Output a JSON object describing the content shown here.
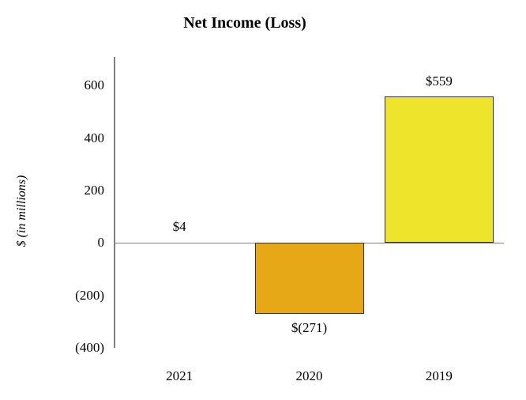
{
  "chart_data": {
    "type": "bar",
    "title": "Net Income (Loss)",
    "ylabel": "$ (in millions)",
    "xlabel": "",
    "categories": [
      "2021",
      "2020",
      "2019"
    ],
    "values": [
      4,
      -271,
      559
    ],
    "data_labels": [
      "$4",
      "$(271)",
      "$559"
    ],
    "bar_colors": [
      "#efe42c",
      "#e6a817",
      "#efe42c"
    ],
    "bar_border_color": "#333333",
    "axis_color": "#7f7f7f",
    "yticks": [
      600,
      400,
      200,
      0,
      -200,
      -400
    ],
    "ytick_labels": [
      "600",
      "400",
      "200",
      "0",
      "(200)",
      "(400)"
    ],
    "ylim": [
      -400,
      710
    ],
    "grid": false,
    "legend": "none"
  }
}
